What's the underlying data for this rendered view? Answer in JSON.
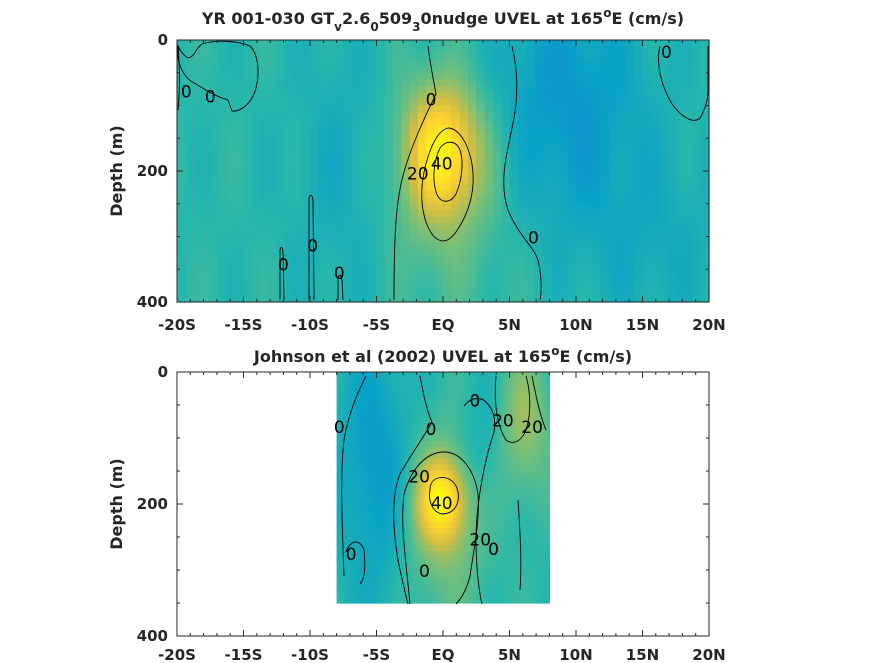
{
  "chart_data": [
    {
      "type": "heatmap",
      "panel": "top",
      "title_parts": [
        {
          "text": "YR 001-030 GT",
          "shift": null
        },
        {
          "text": "v",
          "shift": "sub"
        },
        {
          "text": "2.6",
          "shift": null
        },
        {
          "text": "0",
          "shift": "sub"
        },
        {
          "text": "509",
          "shift": null
        },
        {
          "text": "3",
          "shift": "sub"
        },
        {
          "text": "0nudge UVEL at 165",
          "shift": null
        },
        {
          "text": "o",
          "shift": "sup"
        },
        {
          "text": "E (cm/s)",
          "shift": null
        }
      ],
      "ylabel": "Depth (m)",
      "xlim": [
        -20,
        20
      ],
      "ylim": [
        0,
        400
      ],
      "y_reversed": true,
      "colormap": "parula",
      "clim": [
        -60,
        60
      ],
      "x_ticks": [
        -20,
        -15,
        -10,
        -5,
        0,
        5,
        10,
        15,
        20
      ],
      "x_tick_labels": [
        "-20S",
        "-15S",
        "-10S",
        "-5S",
        "EQ",
        "5N",
        "10N",
        "15N",
        "20N"
      ],
      "y_ticks": [
        0,
        200,
        400
      ],
      "y_tick_labels": [
        "0",
        "200",
        "400"
      ],
      "data_extent": {
        "x": [
          -20,
          20
        ],
        "y": [
          0,
          400
        ]
      },
      "features": [
        {
          "kind": "core",
          "x": 0,
          "y": 170,
          "value": 48,
          "sx": 2.0,
          "sy": 70
        },
        {
          "kind": "core",
          "x": 0,
          "y": 220,
          "value": 14,
          "sx": 4.0,
          "sy": 140
        },
        {
          "kind": "core",
          "x": 9,
          "y": 100,
          "value": -20,
          "sx": 4.5,
          "sy": 140
        },
        {
          "kind": "core",
          "x": -7,
          "y": 200,
          "value": -10,
          "sx": 3.0,
          "sy": 160
        },
        {
          "kind": "core",
          "x": 16,
          "y": 320,
          "value": -8,
          "sx": 4.0,
          "sy": 100
        }
      ],
      "contour_labels": [
        {
          "text": "0",
          "x": -19.3,
          "y": 80
        },
        {
          "text": "0",
          "x": -17.5,
          "y": 88
        },
        {
          "text": "0",
          "x": -0.9,
          "y": 92
        },
        {
          "text": "40",
          "x": -0.1,
          "y": 190
        },
        {
          "text": "20",
          "x": -1.9,
          "y": 205
        },
        {
          "text": "0",
          "x": 6.8,
          "y": 303
        },
        {
          "text": "0",
          "x": -12.0,
          "y": 344
        },
        {
          "text": "0",
          "x": -9.8,
          "y": 315
        },
        {
          "text": "0",
          "x": -7.8,
          "y": 357
        },
        {
          "text": "0",
          "x": 16.8,
          "y": 20
        }
      ]
    },
    {
      "type": "heatmap",
      "panel": "bottom",
      "title_parts": [
        {
          "text": "Johnson et al (2002) UVEL at 165",
          "shift": null
        },
        {
          "text": "o",
          "shift": "sup"
        },
        {
          "text": "E (cm/s)",
          "shift": null
        }
      ],
      "ylabel": "Depth (m)",
      "xlim": [
        -20,
        20
      ],
      "ylim": [
        0,
        400
      ],
      "y_reversed": true,
      "colormap": "parula",
      "clim": [
        -60,
        60
      ],
      "x_ticks": [
        -20,
        -15,
        -10,
        -5,
        0,
        5,
        10,
        15,
        20
      ],
      "x_tick_labels": [
        "-20S",
        "-15S",
        "-10S",
        "-5S",
        "EQ",
        "5N",
        "10N",
        "15N",
        "20N"
      ],
      "y_ticks": [
        0,
        200,
        400
      ],
      "y_tick_labels": [
        "0",
        "200",
        "400"
      ],
      "data_extent": {
        "x": [
          -8,
          8
        ],
        "y": [
          0,
          350
        ]
      },
      "features": [
        {
          "kind": "core",
          "x": -0.1,
          "y": 195,
          "value": 45,
          "sx": 1.3,
          "sy": 45
        },
        {
          "kind": "core",
          "x": 0,
          "y": 220,
          "value": 18,
          "sx": 2.5,
          "sy": 110
        },
        {
          "kind": "core",
          "x": 6,
          "y": 80,
          "value": 22,
          "sx": 1.5,
          "sy": 80
        },
        {
          "kind": "core",
          "x": -5,
          "y": 150,
          "value": -20,
          "sx": 2.0,
          "sy": 140
        },
        {
          "kind": "core",
          "x": 3,
          "y": 120,
          "value": -12,
          "sx": 1.5,
          "sy": 80
        }
      ],
      "contour_labels": [
        {
          "text": "0",
          "x": -7.8,
          "y": 85
        },
        {
          "text": "0",
          "x": -0.9,
          "y": 88
        },
        {
          "text": "0",
          "x": 2.4,
          "y": 45
        },
        {
          "text": "20",
          "x": 4.5,
          "y": 75
        },
        {
          "text": "20",
          "x": 6.7,
          "y": 85
        },
        {
          "text": "20",
          "x": -1.8,
          "y": 160
        },
        {
          "text": "40",
          "x": -0.1,
          "y": 200
        },
        {
          "text": "20",
          "x": 2.8,
          "y": 255
        },
        {
          "text": "0",
          "x": 3.8,
          "y": 270
        },
        {
          "text": "0",
          "x": -6.9,
          "y": 277
        },
        {
          "text": "0",
          "x": -1.4,
          "y": 303
        }
      ]
    }
  ]
}
